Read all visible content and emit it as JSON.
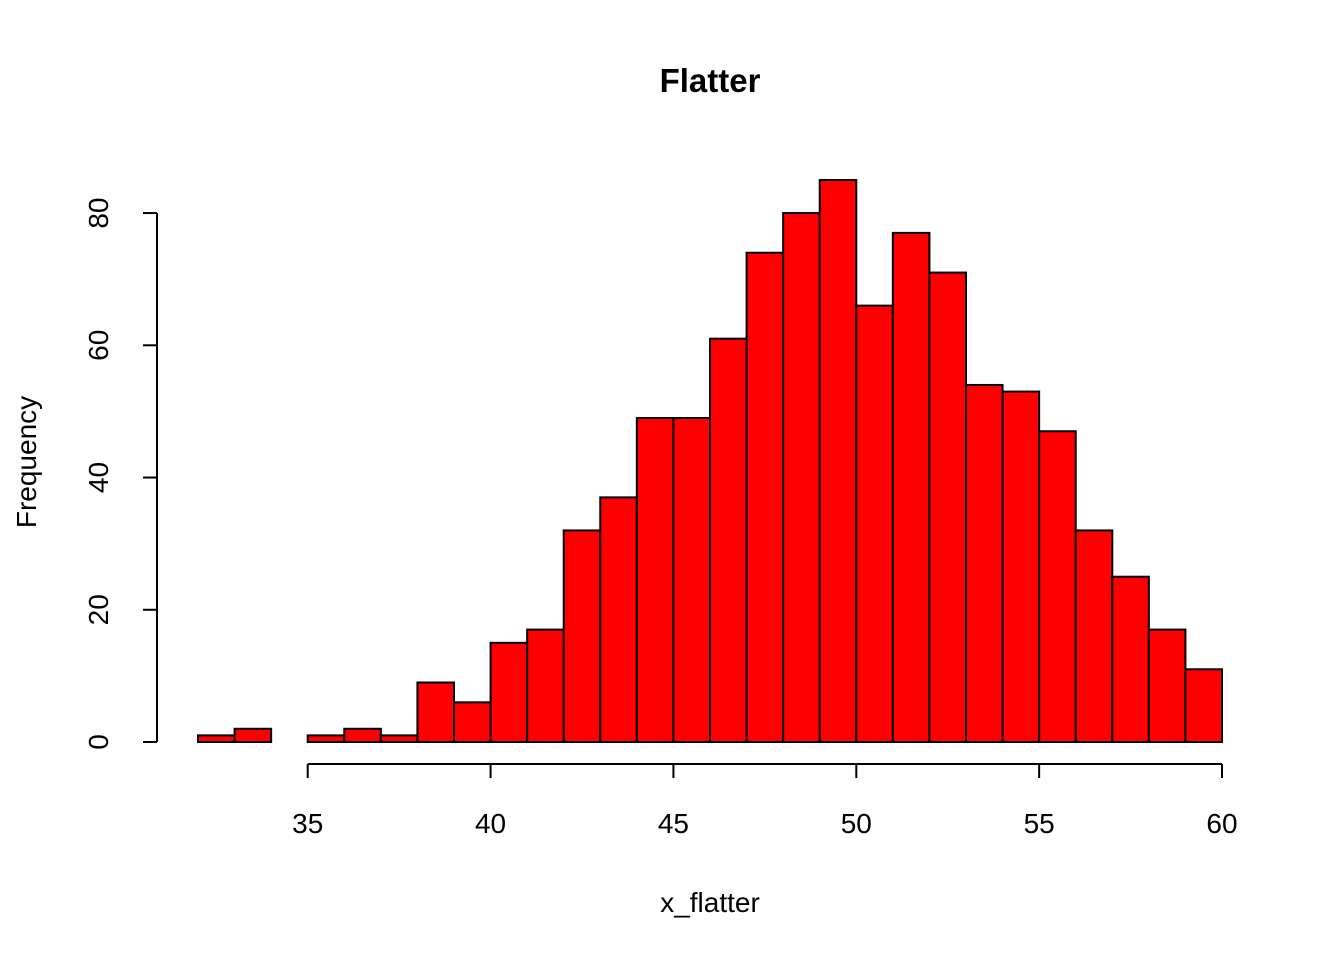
{
  "chart_data": {
    "type": "bar",
    "subtype": "histogram",
    "title": "Flatter",
    "xlabel": "x_flatter",
    "ylabel": "Frequency",
    "bar_color": "#ff0000",
    "edge_color": "#000000",
    "bin_width": 1,
    "bin_edges_start": 32,
    "values": [
      1,
      2,
      0,
      1,
      2,
      1,
      9,
      6,
      15,
      17,
      32,
      37,
      49,
      49,
      61,
      74,
      80,
      85,
      66,
      77,
      71,
      54,
      53,
      47,
      32,
      25,
      17,
      11
    ],
    "xlim": [
      32,
      60
    ],
    "ylim": [
      0,
      85
    ],
    "x_ticks": [
      35,
      40,
      45,
      50,
      55,
      60
    ],
    "y_ticks": [
      0,
      20,
      40,
      60,
      80
    ],
    "grid": false,
    "legend": "none"
  }
}
